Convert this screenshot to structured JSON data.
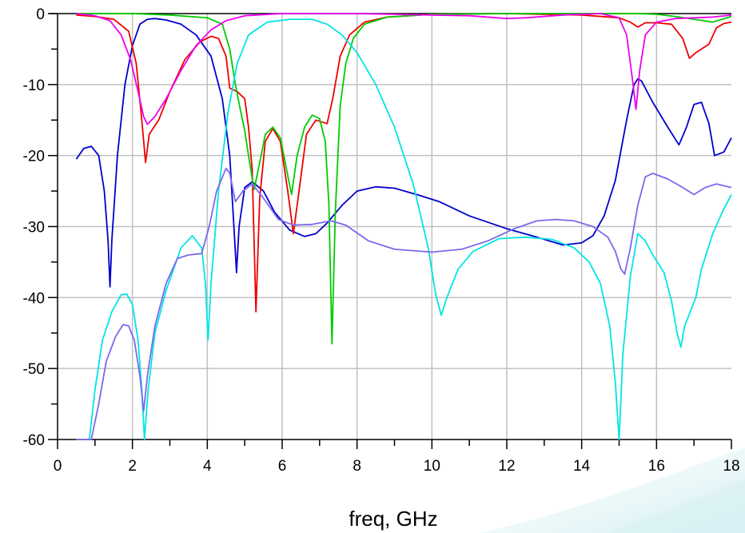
{
  "chart_data": {
    "type": "line",
    "title": "",
    "xlabel": "freq, GHz",
    "ylabel": "",
    "xlim": [
      0,
      18
    ],
    "ylim": [
      -60,
      0
    ],
    "xticks": [
      0,
      2,
      4,
      6,
      8,
      10,
      12,
      14,
      16,
      18
    ],
    "yticks": [
      0,
      -10,
      -20,
      -30,
      -40,
      -50,
      -60
    ],
    "grid": true,
    "legend": "none",
    "series": [
      {
        "color": "#0000cc",
        "points": [
          [
            0.5,
            -20.5
          ],
          [
            0.7,
            -19
          ],
          [
            0.9,
            -18.7
          ],
          [
            1.1,
            -20
          ],
          [
            1.25,
            -25
          ],
          [
            1.35,
            -32
          ],
          [
            1.4,
            -38.5
          ],
          [
            1.45,
            -32
          ],
          [
            1.6,
            -20
          ],
          [
            1.8,
            -10
          ],
          [
            2.0,
            -4.5
          ],
          [
            2.2,
            -1.5
          ],
          [
            2.4,
            -0.8
          ],
          [
            2.6,
            -0.7
          ],
          [
            2.9,
            -0.9
          ],
          [
            3.3,
            -1.5
          ],
          [
            3.7,
            -3
          ],
          [
            4.1,
            -6
          ],
          [
            4.4,
            -12
          ],
          [
            4.6,
            -20
          ],
          [
            4.7,
            -29
          ],
          [
            4.78,
            -36.5
          ],
          [
            4.85,
            -30
          ],
          [
            5.0,
            -24.5
          ],
          [
            5.2,
            -23.7
          ],
          [
            5.5,
            -25
          ],
          [
            5.8,
            -28
          ],
          [
            6.2,
            -30.5
          ],
          [
            6.6,
            -31.4
          ],
          [
            6.9,
            -31
          ],
          [
            7.2,
            -29.5
          ],
          [
            7.6,
            -27
          ],
          [
            8.0,
            -25
          ],
          [
            8.5,
            -24.4
          ],
          [
            9.0,
            -24.6
          ],
          [
            9.6,
            -25.5
          ],
          [
            10.2,
            -26.5
          ],
          [
            11.0,
            -28.5
          ],
          [
            12.0,
            -30.3
          ],
          [
            12.8,
            -31.5
          ],
          [
            13.5,
            -32.6
          ],
          [
            14.0,
            -32.3
          ],
          [
            14.3,
            -31.3
          ],
          [
            14.6,
            -28.5
          ],
          [
            14.9,
            -23.5
          ],
          [
            15.2,
            -15
          ],
          [
            15.4,
            -10
          ],
          [
            15.5,
            -9.2
          ],
          [
            15.6,
            -9.5
          ],
          [
            15.9,
            -12.5
          ],
          [
            16.3,
            -16
          ],
          [
            16.6,
            -18.5
          ],
          [
            16.8,
            -16
          ],
          [
            17.0,
            -12.8
          ],
          [
            17.2,
            -12.5
          ],
          [
            17.4,
            -15.5
          ],
          [
            17.55,
            -20
          ],
          [
            17.8,
            -19.5
          ],
          [
            18.0,
            -17.5
          ]
        ]
      },
      {
        "color": "#ee0000",
        "points": [
          [
            0.5,
            -0.2
          ],
          [
            1.0,
            -0.4
          ],
          [
            1.5,
            -0.8
          ],
          [
            1.9,
            -2.5
          ],
          [
            2.1,
            -7
          ],
          [
            2.25,
            -15
          ],
          [
            2.35,
            -21
          ],
          [
            2.45,
            -17
          ],
          [
            2.7,
            -15
          ],
          [
            3.0,
            -11
          ],
          [
            3.4,
            -6.5
          ],
          [
            3.8,
            -4
          ],
          [
            4.1,
            -3.2
          ],
          [
            4.3,
            -3.5
          ],
          [
            4.5,
            -6
          ],
          [
            4.6,
            -10.5
          ],
          [
            4.8,
            -11
          ],
          [
            5.0,
            -12
          ],
          [
            5.1,
            -16
          ],
          [
            5.2,
            -22
          ],
          [
            5.3,
            -42
          ],
          [
            5.4,
            -26
          ],
          [
            5.55,
            -18
          ],
          [
            5.75,
            -16.2
          ],
          [
            5.95,
            -18
          ],
          [
            6.15,
            -25
          ],
          [
            6.3,
            -31
          ],
          [
            6.45,
            -25
          ],
          [
            6.65,
            -17
          ],
          [
            6.9,
            -15
          ],
          [
            7.2,
            -15.5
          ],
          [
            7.35,
            -12
          ],
          [
            7.55,
            -6
          ],
          [
            7.8,
            -3
          ],
          [
            8.2,
            -1.2
          ],
          [
            8.8,
            -0.5
          ],
          [
            10.0,
            -0.1
          ],
          [
            12.0,
            0
          ],
          [
            14.0,
            -0.2
          ],
          [
            15.0,
            -0.6
          ],
          [
            15.3,
            -1.2
          ],
          [
            15.5,
            -1.9
          ],
          [
            15.7,
            -1.3
          ],
          [
            16.0,
            -1.3
          ],
          [
            16.4,
            -1.5
          ],
          [
            16.7,
            -3.5
          ],
          [
            16.88,
            -6.3
          ],
          [
            17.05,
            -5.5
          ],
          [
            17.2,
            -5
          ],
          [
            17.4,
            -4.3
          ],
          [
            17.6,
            -2
          ],
          [
            17.8,
            -1.4
          ],
          [
            18.0,
            -1.2
          ]
        ]
      },
      {
        "color": "#00cc00",
        "points": [
          [
            0.5,
            0
          ],
          [
            1.0,
            0
          ],
          [
            2.0,
            0
          ],
          [
            3.0,
            -0.2
          ],
          [
            4.0,
            -0.6
          ],
          [
            4.4,
            -1.5
          ],
          [
            4.6,
            -5
          ],
          [
            4.75,
            -10
          ],
          [
            4.9,
            -14
          ],
          [
            5.0,
            -16.5
          ],
          [
            5.1,
            -20
          ],
          [
            5.25,
            -24.8
          ],
          [
            5.4,
            -21
          ],
          [
            5.55,
            -17
          ],
          [
            5.75,
            -16
          ],
          [
            5.95,
            -17.5
          ],
          [
            6.1,
            -21.5
          ],
          [
            6.25,
            -25.5
          ],
          [
            6.4,
            -20
          ],
          [
            6.6,
            -16
          ],
          [
            6.8,
            -14.3
          ],
          [
            7.0,
            -14.8
          ],
          [
            7.15,
            -18
          ],
          [
            7.25,
            -27
          ],
          [
            7.33,
            -46.5
          ],
          [
            7.42,
            -28
          ],
          [
            7.55,
            -13
          ],
          [
            7.7,
            -7
          ],
          [
            7.9,
            -3.5
          ],
          [
            8.2,
            -1.5
          ],
          [
            8.8,
            -0.5
          ],
          [
            10.0,
            -0.1
          ],
          [
            12.0,
            0
          ],
          [
            14.0,
            0
          ],
          [
            15.0,
            0
          ],
          [
            15.5,
            0
          ],
          [
            16.0,
            -0.1
          ],
          [
            16.5,
            -0.4
          ],
          [
            17.0,
            -0.8
          ],
          [
            17.5,
            -1.2
          ],
          [
            18.0,
            -0.4
          ]
        ]
      },
      {
        "color": "#ee00ee",
        "points": [
          [
            0.5,
            0
          ],
          [
            1.0,
            -0.3
          ],
          [
            1.4,
            -1
          ],
          [
            1.7,
            -3
          ],
          [
            1.95,
            -6.5
          ],
          [
            2.15,
            -11
          ],
          [
            2.3,
            -14.5
          ],
          [
            2.4,
            -15.6
          ],
          [
            2.6,
            -14.5
          ],
          [
            2.9,
            -12
          ],
          [
            3.3,
            -8
          ],
          [
            3.7,
            -4.5
          ],
          [
            4.1,
            -2.3
          ],
          [
            4.5,
            -1
          ],
          [
            5.0,
            -0.3
          ],
          [
            6.0,
            0
          ],
          [
            8.0,
            0
          ],
          [
            10.0,
            -0.2
          ],
          [
            11.0,
            -0.3
          ],
          [
            12.0,
            -0.7
          ],
          [
            12.5,
            -0.6
          ],
          [
            13.5,
            -0.2
          ],
          [
            14.5,
            0
          ],
          [
            15.0,
            -0.6
          ],
          [
            15.2,
            -3
          ],
          [
            15.35,
            -9
          ],
          [
            15.45,
            -13.5
          ],
          [
            15.55,
            -8
          ],
          [
            15.7,
            -3
          ],
          [
            16.0,
            -1.2
          ],
          [
            16.5,
            -0.7
          ],
          [
            17.0,
            -0.6
          ],
          [
            17.5,
            -0.5
          ],
          [
            18.0,
            -0.2
          ]
        ]
      },
      {
        "color": "#00e5e5",
        "points": [
          [
            0.85,
            -60
          ],
          [
            1.0,
            -53
          ],
          [
            1.2,
            -46
          ],
          [
            1.45,
            -42
          ],
          [
            1.7,
            -39.6
          ],
          [
            1.85,
            -39.5
          ],
          [
            2.0,
            -41
          ],
          [
            2.15,
            -46
          ],
          [
            2.25,
            -53
          ],
          [
            2.32,
            -60
          ],
          [
            2.42,
            -53
          ],
          [
            2.6,
            -45
          ],
          [
            2.9,
            -39
          ],
          [
            3.3,
            -33
          ],
          [
            3.6,
            -31.3
          ],
          [
            3.85,
            -33
          ],
          [
            3.95,
            -38
          ],
          [
            4.02,
            -46
          ],
          [
            4.1,
            -38
          ],
          [
            4.3,
            -25
          ],
          [
            4.55,
            -14
          ],
          [
            4.8,
            -7
          ],
          [
            5.1,
            -3
          ],
          [
            5.6,
            -1.2
          ],
          [
            6.2,
            -0.8
          ],
          [
            6.8,
            -0.8
          ],
          [
            7.2,
            -1.5
          ],
          [
            7.6,
            -3
          ],
          [
            8.0,
            -5.5
          ],
          [
            8.5,
            -10
          ],
          [
            9.0,
            -16
          ],
          [
            9.5,
            -24
          ],
          [
            9.9,
            -33
          ],
          [
            10.1,
            -39.5
          ],
          [
            10.25,
            -42.5
          ],
          [
            10.4,
            -40
          ],
          [
            10.7,
            -36
          ],
          [
            11.1,
            -33.5
          ],
          [
            11.8,
            -31.7
          ],
          [
            12.5,
            -31.5
          ],
          [
            13.2,
            -31.8
          ],
          [
            13.8,
            -33
          ],
          [
            14.2,
            -35
          ],
          [
            14.5,
            -38
          ],
          [
            14.75,
            -44
          ],
          [
            14.9,
            -52
          ],
          [
            15.0,
            -60
          ],
          [
            15.1,
            -48
          ],
          [
            15.3,
            -37
          ],
          [
            15.5,
            -31
          ],
          [
            15.7,
            -32
          ],
          [
            15.9,
            -34
          ],
          [
            16.2,
            -36.5
          ],
          [
            16.4,
            -40.5
          ],
          [
            16.55,
            -45
          ],
          [
            16.65,
            -47
          ],
          [
            16.75,
            -44
          ],
          [
            16.9,
            -42
          ],
          [
            17.05,
            -40
          ],
          [
            17.2,
            -36
          ],
          [
            17.5,
            -31
          ],
          [
            17.8,
            -27.5
          ],
          [
            18.0,
            -25.5
          ]
        ]
      },
      {
        "color": "#7b68ee",
        "points": [
          [
            0.5,
            -60
          ],
          [
            0.9,
            -60
          ],
          [
            1.1,
            -55
          ],
          [
            1.3,
            -49
          ],
          [
            1.55,
            -45.5
          ],
          [
            1.75,
            -43.8
          ],
          [
            1.9,
            -44
          ],
          [
            2.05,
            -46
          ],
          [
            2.2,
            -51
          ],
          [
            2.3,
            -56
          ],
          [
            2.4,
            -51
          ],
          [
            2.6,
            -44
          ],
          [
            2.9,
            -38
          ],
          [
            3.2,
            -34.5
          ],
          [
            3.5,
            -34
          ],
          [
            3.85,
            -33.8
          ],
          [
            4.05,
            -30
          ],
          [
            4.25,
            -25
          ],
          [
            4.5,
            -21.8
          ],
          [
            4.6,
            -22.5
          ],
          [
            4.75,
            -26.5
          ],
          [
            4.95,
            -25
          ],
          [
            5.2,
            -24
          ],
          [
            5.5,
            -26
          ],
          [
            5.9,
            -29
          ],
          [
            6.3,
            -29.8
          ],
          [
            6.8,
            -29.7
          ],
          [
            7.3,
            -29.2
          ],
          [
            7.7,
            -29.8
          ],
          [
            8.3,
            -32
          ],
          [
            9.0,
            -33.2
          ],
          [
            10.0,
            -33.6
          ],
          [
            10.8,
            -33.2
          ],
          [
            11.5,
            -32
          ],
          [
            12.2,
            -30.3
          ],
          [
            12.8,
            -29.2
          ],
          [
            13.3,
            -29
          ],
          [
            13.8,
            -29.2
          ],
          [
            14.3,
            -30
          ],
          [
            14.7,
            -31.5
          ],
          [
            14.9,
            -33.5
          ],
          [
            15.05,
            -36
          ],
          [
            15.15,
            -36.7
          ],
          [
            15.3,
            -33
          ],
          [
            15.5,
            -27
          ],
          [
            15.7,
            -23
          ],
          [
            15.9,
            -22.5
          ],
          [
            16.3,
            -23.3
          ],
          [
            16.7,
            -24.5
          ],
          [
            17.0,
            -25.5
          ],
          [
            17.3,
            -24.5
          ],
          [
            17.6,
            -24
          ],
          [
            18.0,
            -24.5
          ]
        ]
      }
    ]
  }
}
